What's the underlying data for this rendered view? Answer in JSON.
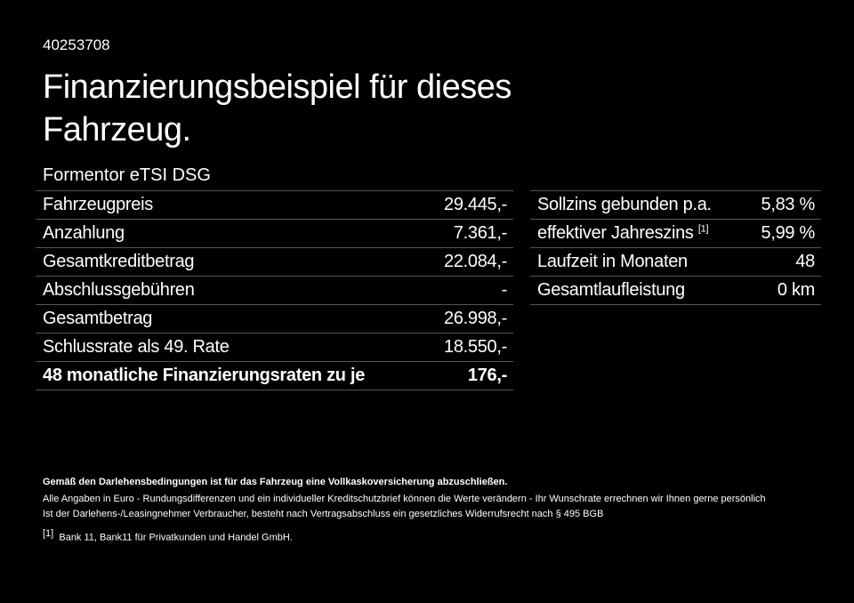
{
  "id": "40253708",
  "title": "Finanzierungsbeispiel für dieses Fahrzeug.",
  "model": "Formentor eTSI DSG",
  "left_table": [
    {
      "label": "Fahrzeugpreis",
      "value": "29.445,-"
    },
    {
      "label": "Anzahlung",
      "value": "7.361,-"
    },
    {
      "label": "Gesamtkreditbetrag",
      "value": "22.084,-"
    },
    {
      "label": "Abschlussgebühren",
      "value": "-"
    },
    {
      "label": "Gesamtbetrag",
      "value": "26.998,-"
    },
    {
      "label": "Schlussrate als 49. Rate",
      "value": "18.550,-"
    },
    {
      "label": "48 monatliche Finanzierungsraten zu je",
      "value": "176,-"
    }
  ],
  "right_table": [
    {
      "label": "Sollzins gebunden p.a.",
      "sup": "",
      "value": "5,83 %"
    },
    {
      "label": "effektiver Jahreszins",
      "sup": "[1]",
      "value": "5,99 %"
    },
    {
      "label": "Laufzeit in Monaten",
      "sup": "",
      "value": "48"
    },
    {
      "label": "Gesamtlaufleistung",
      "sup": "",
      "value": "0 km"
    }
  ],
  "footnotes": {
    "insurance": "Gemäß den Darlehensbedingungen ist für das Fahrzeug eine Vollkaskoversicherung abzuschließen.",
    "line1": "Alle Angaben in Euro - Rundungsdifferenzen und ein individueller Kreditschutzbrief können die Werte verändern - Ihr Wunschrate errechnen wir Ihnen gerne persönlich",
    "line2": "Ist der Darlehens-/Leasingnehmer Verbraucher, besteht nach Vertragsabschluss ein gesetzliches Widerrufsrecht nach § 495 BGB",
    "ref_mark": "[1]",
    "ref_text": "Bank 11, Bank11 für Privatkunden und Handel GmbH."
  }
}
